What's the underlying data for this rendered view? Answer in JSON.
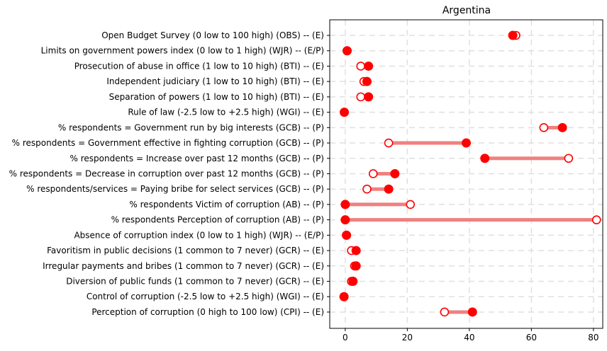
{
  "chart_data": {
    "type": "dumbbell",
    "title": "Argentina",
    "xlabel": "",
    "ylabel": "",
    "xlim": [
      -5,
      83
    ],
    "xticks": [
      0,
      20,
      40,
      60,
      80
    ],
    "grid": true,
    "colors": {
      "line": "#f08080",
      "marker": "#ff0000",
      "open_fill": "#ffffff"
    },
    "rows": [
      {
        "label": "Open Budget Survey (0 low to 100 high) (OBS)  -- (E)",
        "open": 55,
        "filled": 54
      },
      {
        "label": "Limits on government powers index (0 low to 1 high) (WJR) -- (E/P)",
        "open": 0.6,
        "filled": 0.6
      },
      {
        "label": "Prosecution of abuse in office (1 low to 10 high) (BTI)  -- (E)",
        "open": 5,
        "filled": 7.5
      },
      {
        "label": "Independent judiciary (1 low to 10 high) (BTI)  -- (E)",
        "open": 6,
        "filled": 7
      },
      {
        "label": "Separation of powers (1 low to 10 high) (BTI)  -- (E)",
        "open": 5,
        "filled": 7.5
      },
      {
        "label": "Rule of law (-2.5 low to +2.5 high) (WGI)  -- (E)",
        "open": -0.3,
        "filled": -0.3
      },
      {
        "label": "% respondents = Government run by big interests (GCB)  -- (P)",
        "open": 64,
        "filled": 70
      },
      {
        "label": "% respondents = Government effective in fighting corruption (GCB)  -- (P)",
        "open": 14,
        "filled": 39
      },
      {
        "label": "% respondents = Increase over past 12 months (GCB)  -- (P)",
        "open": 72,
        "filled": 45
      },
      {
        "label": "% respondents = Decrease in corruption over past 12 months  (GCB)  -- (P)",
        "open": 9,
        "filled": 16
      },
      {
        "label": "% respondents/services = Paying bribe for select services (GCB)  -- (P)",
        "open": 7,
        "filled": 14
      },
      {
        "label": "% respondents Victim of corruption (AB)  -- (P)",
        "open": 21,
        "filled": 0
      },
      {
        "label": "% respondents Perception of  corruption (AB)  -- (P)",
        "open": 81,
        "filled": 0
      },
      {
        "label": "Absence of corruption index (0 low to 1 high) (WJR) -- (E/P)",
        "open": 0.4,
        "filled": 0.4
      },
      {
        "label": "Favoritism in public decisions (1 common to 7 never) (GCR)  --  (E)",
        "open": 2,
        "filled": 3.5
      },
      {
        "label": "Irregular payments and bribes (1 common to 7 never) (GCR)  -- (E)",
        "open": 3,
        "filled": 3.5
      },
      {
        "label": "Diversion of public funds (1 common to 7 never)  (GCR)  -- (E)",
        "open": 2,
        "filled": 2.5
      },
      {
        "label": "Control of corruption (-2.5 low to +2.5 high) (WGI) -- (E)",
        "open": -0.4,
        "filled": -0.4
      },
      {
        "label": "Perception of corruption (0 high to 100 low) (CPI) -- (E)",
        "open": 32,
        "filled": 41
      }
    ]
  }
}
